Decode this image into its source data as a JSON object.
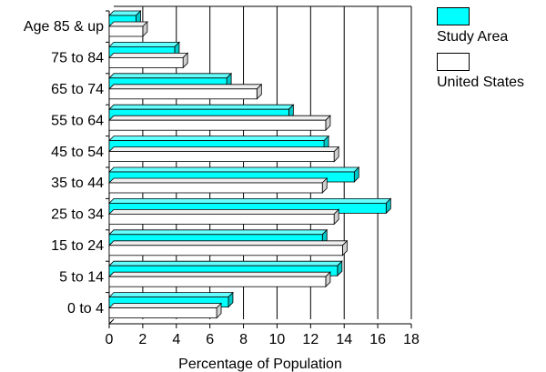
{
  "chart_data": {
    "type": "bar",
    "orientation": "horizontal",
    "style": "3d",
    "categories": [
      "Age 85 & up",
      "75 to 84",
      "65 to 74",
      "55 to 64",
      "45 to 54",
      "35 to 44",
      "25 to 34",
      "15 to 24",
      "5 to 14",
      "0 to 4"
    ],
    "series": [
      {
        "name": "Study Area",
        "color": "#00ffff",
        "values": [
          1.6,
          3.9,
          7.0,
          10.7,
          12.8,
          14.6,
          16.5,
          12.7,
          13.6,
          7.1
        ]
      },
      {
        "name": "United States",
        "color": "#ffffff",
        "values": [
          2.0,
          4.4,
          8.8,
          12.9,
          13.4,
          12.7,
          13.4,
          13.9,
          12.9,
          6.4
        ]
      }
    ],
    "xlabel": "Percentage of Population",
    "ylabel": "",
    "xlim": [
      0,
      18
    ],
    "xticks": [
      "0",
      "2",
      "4",
      "6",
      "8",
      "10",
      "12",
      "14",
      "16",
      "18"
    ],
    "grid": true,
    "legend_position": "top-right"
  }
}
